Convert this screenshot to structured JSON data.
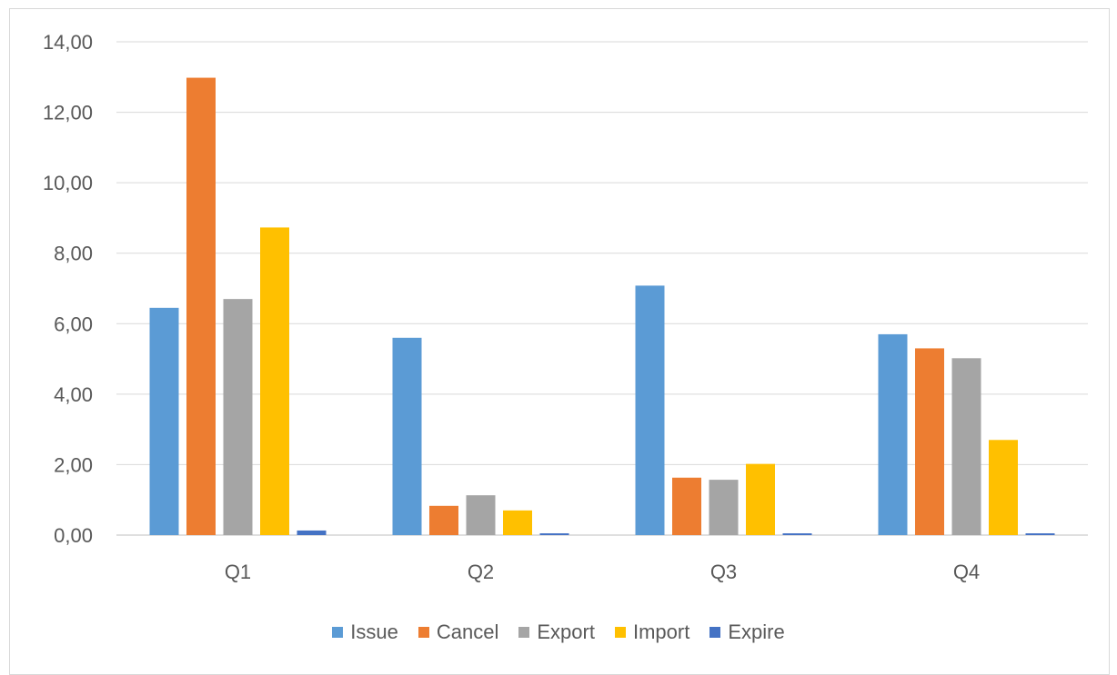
{
  "chart_data": {
    "type": "bar",
    "title": "",
    "xlabel": "",
    "ylabel": "",
    "categories": [
      "Q1",
      "Q2",
      "Q3",
      "Q4"
    ],
    "ylim": [
      0,
      14
    ],
    "yticks": [
      0,
      2,
      4,
      6,
      8,
      10,
      12,
      14
    ],
    "ytick_labels": [
      "0,00",
      "2,00",
      "4,00",
      "6,00",
      "8,00",
      "10,00",
      "12,00",
      "14,00"
    ],
    "grid": true,
    "legend_position": "bottom",
    "series": [
      {
        "name": "Issue",
        "color": "#5b9bd5",
        "values": [
          6.45,
          5.6,
          7.08,
          5.7
        ]
      },
      {
        "name": "Cancel",
        "color": "#ed7d31",
        "values": [
          12.98,
          0.83,
          1.63,
          5.3
        ]
      },
      {
        "name": "Export",
        "color": "#a5a5a5",
        "values": [
          6.7,
          1.13,
          1.57,
          5.02
        ]
      },
      {
        "name": "Import",
        "color": "#ffc000",
        "values": [
          8.73,
          0.7,
          2.02,
          2.7
        ]
      },
      {
        "name": "Expire",
        "color": "#4472c4",
        "values": [
          0.13,
          0.05,
          0.05,
          0.05
        ]
      }
    ]
  }
}
